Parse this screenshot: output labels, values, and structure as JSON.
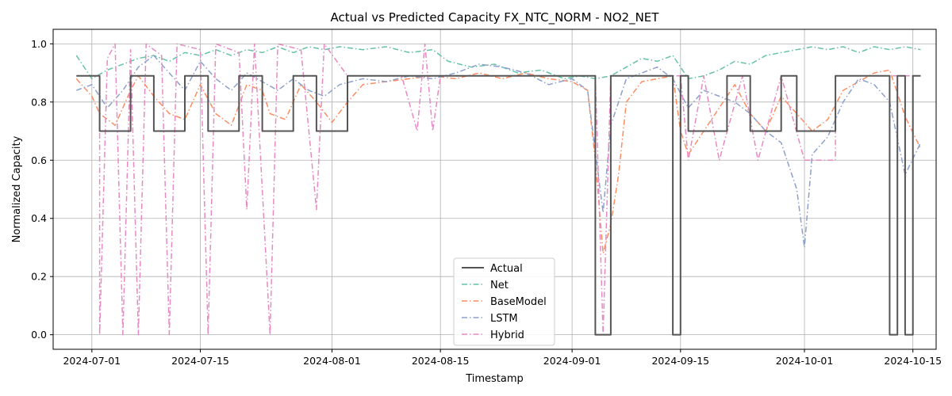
{
  "chart_data": {
    "type": "line",
    "title": "Actual vs Predicted Capacity FX_NTC_NORM - NO2_NET",
    "xlabel": "Timestamp",
    "ylabel": "Normalized Capacity",
    "x_range": [
      "2024-06-26",
      "2024-10-18"
    ],
    "ylim": [
      -0.05,
      1.05
    ],
    "x_ticks": [
      "2024-07-01",
      "2024-07-15",
      "2024-08-01",
      "2024-08-15",
      "2024-09-01",
      "2024-09-15",
      "2024-10-01",
      "2024-10-15"
    ],
    "y_ticks": [
      "0.0",
      "0.2",
      "0.4",
      "0.6",
      "0.8",
      "1.0"
    ],
    "grid": true,
    "legend_position": "lower center",
    "series": [
      {
        "name": "Actual",
        "color": "#555555",
        "style": "solid",
        "points": [
          [
            "2024-06-29",
            0.89
          ],
          [
            "2024-07-02",
            0.89
          ],
          [
            "2024-07-02",
            0.7
          ],
          [
            "2024-07-06",
            0.7
          ],
          [
            "2024-07-06",
            0.89
          ],
          [
            "2024-07-09",
            0.89
          ],
          [
            "2024-07-09",
            0.7
          ],
          [
            "2024-07-13",
            0.7
          ],
          [
            "2024-07-13",
            0.89
          ],
          [
            "2024-07-16",
            0.89
          ],
          [
            "2024-07-16",
            0.7
          ],
          [
            "2024-07-20",
            0.7
          ],
          [
            "2024-07-20",
            0.89
          ],
          [
            "2024-07-23",
            0.89
          ],
          [
            "2024-07-23",
            0.7
          ],
          [
            "2024-07-27",
            0.7
          ],
          [
            "2024-07-27",
            0.89
          ],
          [
            "2024-07-30",
            0.89
          ],
          [
            "2024-07-30",
            0.7
          ],
          [
            "2024-08-03",
            0.7
          ],
          [
            "2024-08-03",
            0.89
          ],
          [
            "2024-09-04",
            0.89
          ],
          [
            "2024-09-04",
            0.0
          ],
          [
            "2024-09-06",
            0.0
          ],
          [
            "2024-09-06",
            0.89
          ],
          [
            "2024-09-14",
            0.89
          ],
          [
            "2024-09-14",
            0.0
          ],
          [
            "2024-09-15",
            0.0
          ],
          [
            "2024-09-15",
            0.89
          ],
          [
            "2024-09-16",
            0.89
          ],
          [
            "2024-09-16",
            0.7
          ],
          [
            "2024-09-21",
            0.7
          ],
          [
            "2024-09-21",
            0.89
          ],
          [
            "2024-09-24",
            0.89
          ],
          [
            "2024-09-24",
            0.7
          ],
          [
            "2024-09-28",
            0.7
          ],
          [
            "2024-09-28",
            0.89
          ],
          [
            "2024-09-30",
            0.89
          ],
          [
            "2024-09-30",
            0.7
          ],
          [
            "2024-10-05",
            0.7
          ],
          [
            "2024-10-05",
            0.89
          ],
          [
            "2024-10-12",
            0.89
          ],
          [
            "2024-10-12",
            0.0
          ],
          [
            "2024-10-13",
            0.0
          ],
          [
            "2024-10-13",
            0.89
          ],
          [
            "2024-10-14",
            0.89
          ],
          [
            "2024-10-14",
            0.0
          ],
          [
            "2024-10-15",
            0.0
          ],
          [
            "2024-10-15",
            0.89
          ],
          [
            "2024-10-16",
            0.89
          ]
        ]
      },
      {
        "name": "Net",
        "color": "#66c2a5",
        "style": "dashdot",
        "points": [
          [
            "2024-06-29",
            0.96
          ],
          [
            "2024-07-01",
            0.88
          ],
          [
            "2024-07-03",
            0.91
          ],
          [
            "2024-07-05",
            0.93
          ],
          [
            "2024-07-07",
            0.95
          ],
          [
            "2024-07-09",
            0.96
          ],
          [
            "2024-07-11",
            0.94
          ],
          [
            "2024-07-13",
            0.97
          ],
          [
            "2024-07-15",
            0.96
          ],
          [
            "2024-07-17",
            0.98
          ],
          [
            "2024-07-19",
            0.96
          ],
          [
            "2024-07-21",
            0.98
          ],
          [
            "2024-07-23",
            0.97
          ],
          [
            "2024-07-25",
            0.99
          ],
          [
            "2024-07-27",
            0.97
          ],
          [
            "2024-07-29",
            0.99
          ],
          [
            "2024-07-31",
            0.98
          ],
          [
            "2024-08-02",
            0.99
          ],
          [
            "2024-08-05",
            0.98
          ],
          [
            "2024-08-08",
            0.99
          ],
          [
            "2024-08-11",
            0.97
          ],
          [
            "2024-08-14",
            0.98
          ],
          [
            "2024-08-16",
            0.94
          ],
          [
            "2024-08-19",
            0.92
          ],
          [
            "2024-08-22",
            0.93
          ],
          [
            "2024-08-25",
            0.9
          ],
          [
            "2024-08-28",
            0.91
          ],
          [
            "2024-08-31",
            0.88
          ],
          [
            "2024-09-02",
            0.89
          ],
          [
            "2024-09-04",
            0.88
          ],
          [
            "2024-09-06",
            0.89
          ],
          [
            "2024-09-08",
            0.92
          ],
          [
            "2024-09-10",
            0.95
          ],
          [
            "2024-09-12",
            0.94
          ],
          [
            "2024-09-14",
            0.96
          ],
          [
            "2024-09-16",
            0.88
          ],
          [
            "2024-09-18",
            0.89
          ],
          [
            "2024-09-20",
            0.91
          ],
          [
            "2024-09-22",
            0.94
          ],
          [
            "2024-09-24",
            0.93
          ],
          [
            "2024-09-26",
            0.96
          ],
          [
            "2024-09-28",
            0.97
          ],
          [
            "2024-09-30",
            0.98
          ],
          [
            "2024-10-02",
            0.99
          ],
          [
            "2024-10-04",
            0.98
          ],
          [
            "2024-10-06",
            0.99
          ],
          [
            "2024-10-08",
            0.97
          ],
          [
            "2024-10-10",
            0.99
          ],
          [
            "2024-10-12",
            0.98
          ],
          [
            "2024-10-14",
            0.99
          ],
          [
            "2024-10-16",
            0.98
          ]
        ]
      },
      {
        "name": "BaseModel",
        "color": "#fc8d62",
        "style": "dashdot",
        "points": [
          [
            "2024-06-29",
            0.88
          ],
          [
            "2024-07-01",
            0.82
          ],
          [
            "2024-07-02",
            0.76
          ],
          [
            "2024-07-04",
            0.72
          ],
          [
            "2024-07-06",
            0.84
          ],
          [
            "2024-07-07",
            0.89
          ],
          [
            "2024-07-09",
            0.82
          ],
          [
            "2024-07-11",
            0.76
          ],
          [
            "2024-07-13",
            0.74
          ],
          [
            "2024-07-15",
            0.86
          ],
          [
            "2024-07-17",
            0.76
          ],
          [
            "2024-07-19",
            0.72
          ],
          [
            "2024-07-21",
            0.86
          ],
          [
            "2024-07-23",
            0.84
          ],
          [
            "2024-07-24",
            0.76
          ],
          [
            "2024-07-26",
            0.74
          ],
          [
            "2024-07-28",
            0.86
          ],
          [
            "2024-07-30",
            0.8
          ],
          [
            "2024-08-01",
            0.73
          ],
          [
            "2024-08-03",
            0.8
          ],
          [
            "2024-08-05",
            0.86
          ],
          [
            "2024-08-08",
            0.87
          ],
          [
            "2024-08-11",
            0.88
          ],
          [
            "2024-08-14",
            0.89
          ],
          [
            "2024-08-17",
            0.88
          ],
          [
            "2024-08-20",
            0.9
          ],
          [
            "2024-08-23",
            0.88
          ],
          [
            "2024-08-26",
            0.9
          ],
          [
            "2024-08-29",
            0.88
          ],
          [
            "2024-09-01",
            0.87
          ],
          [
            "2024-09-03",
            0.84
          ],
          [
            "2024-09-04",
            0.6
          ],
          [
            "2024-09-05",
            0.28
          ],
          [
            "2024-09-06",
            0.38
          ],
          [
            "2024-09-07",
            0.55
          ],
          [
            "2024-09-08",
            0.8
          ],
          [
            "2024-09-10",
            0.87
          ],
          [
            "2024-09-12",
            0.88
          ],
          [
            "2024-09-14",
            0.89
          ],
          [
            "2024-09-15",
            0.7
          ],
          [
            "2024-09-16",
            0.62
          ],
          [
            "2024-09-18",
            0.7
          ],
          [
            "2024-09-20",
            0.78
          ],
          [
            "2024-09-22",
            0.86
          ],
          [
            "2024-09-24",
            0.76
          ],
          [
            "2024-09-26",
            0.7
          ],
          [
            "2024-09-28",
            0.82
          ],
          [
            "2024-09-30",
            0.76
          ],
          [
            "2024-10-02",
            0.7
          ],
          [
            "2024-10-04",
            0.74
          ],
          [
            "2024-10-06",
            0.84
          ],
          [
            "2024-10-08",
            0.87
          ],
          [
            "2024-10-10",
            0.9
          ],
          [
            "2024-10-12",
            0.91
          ],
          [
            "2024-10-14",
            0.75
          ],
          [
            "2024-10-16",
            0.64
          ]
        ]
      },
      {
        "name": "LSTM",
        "color": "#8da0cb",
        "style": "dashdot",
        "points": [
          [
            "2024-06-29",
            0.84
          ],
          [
            "2024-07-01",
            0.86
          ],
          [
            "2024-07-03",
            0.78
          ],
          [
            "2024-07-05",
            0.84
          ],
          [
            "2024-07-07",
            0.92
          ],
          [
            "2024-07-09",
            0.96
          ],
          [
            "2024-07-11",
            0.9
          ],
          [
            "2024-07-13",
            0.84
          ],
          [
            "2024-07-15",
            0.94
          ],
          [
            "2024-07-17",
            0.88
          ],
          [
            "2024-07-19",
            0.84
          ],
          [
            "2024-07-21",
            0.9
          ],
          [
            "2024-07-23",
            0.87
          ],
          [
            "2024-07-25",
            0.84
          ],
          [
            "2024-07-27",
            0.88
          ],
          [
            "2024-07-29",
            0.84
          ],
          [
            "2024-07-31",
            0.82
          ],
          [
            "2024-08-02",
            0.86
          ],
          [
            "2024-08-05",
            0.88
          ],
          [
            "2024-08-08",
            0.87
          ],
          [
            "2024-08-11",
            0.89
          ],
          [
            "2024-08-14",
            0.88
          ],
          [
            "2024-08-17",
            0.9
          ],
          [
            "2024-08-20",
            0.93
          ],
          [
            "2024-08-23",
            0.92
          ],
          [
            "2024-08-26",
            0.9
          ],
          [
            "2024-08-29",
            0.86
          ],
          [
            "2024-09-01",
            0.88
          ],
          [
            "2024-09-03",
            0.84
          ],
          [
            "2024-09-05",
            0.42
          ],
          [
            "2024-09-06",
            0.72
          ],
          [
            "2024-09-08",
            0.88
          ],
          [
            "2024-09-10",
            0.9
          ],
          [
            "2024-09-12",
            0.92
          ],
          [
            "2024-09-14",
            0.88
          ],
          [
            "2024-09-16",
            0.78
          ],
          [
            "2024-09-18",
            0.84
          ],
          [
            "2024-09-20",
            0.82
          ],
          [
            "2024-09-22",
            0.8
          ],
          [
            "2024-09-24",
            0.76
          ],
          [
            "2024-09-26",
            0.7
          ],
          [
            "2024-09-28",
            0.66
          ],
          [
            "2024-09-30",
            0.5
          ],
          [
            "2024-10-01",
            0.3
          ],
          [
            "2024-10-02",
            0.62
          ],
          [
            "2024-10-04",
            0.68
          ],
          [
            "2024-10-06",
            0.8
          ],
          [
            "2024-10-08",
            0.88
          ],
          [
            "2024-10-10",
            0.86
          ],
          [
            "2024-10-12",
            0.8
          ],
          [
            "2024-10-14",
            0.55
          ],
          [
            "2024-10-16",
            0.66
          ]
        ]
      },
      {
        "name": "Hybrid",
        "color": "#e78ac3",
        "style": "dashdot",
        "points": [
          [
            "2024-06-29",
            0.89
          ],
          [
            "2024-07-02",
            0.89
          ],
          [
            "2024-07-02",
            0.0
          ],
          [
            "2024-07-03",
            0.95
          ],
          [
            "2024-07-04",
            1.0
          ],
          [
            "2024-07-05",
            0.0
          ],
          [
            "2024-07-06",
            0.98
          ],
          [
            "2024-07-07",
            0.0
          ],
          [
            "2024-07-08",
            1.0
          ],
          [
            "2024-07-10",
            0.96
          ],
          [
            "2024-07-11",
            0.0
          ],
          [
            "2024-07-12",
            1.0
          ],
          [
            "2024-07-15",
            0.98
          ],
          [
            "2024-07-16",
            0.0
          ],
          [
            "2024-07-17",
            1.0
          ],
          [
            "2024-07-20",
            0.97
          ],
          [
            "2024-07-21",
            0.43
          ],
          [
            "2024-07-22",
            1.0
          ],
          [
            "2024-07-24",
            0.0
          ],
          [
            "2024-07-25",
            1.0
          ],
          [
            "2024-07-28",
            0.98
          ],
          [
            "2024-07-30",
            0.43
          ],
          [
            "2024-07-31",
            1.0
          ],
          [
            "2024-08-03",
            0.89
          ],
          [
            "2024-08-10",
            0.89
          ],
          [
            "2024-08-12",
            0.7
          ],
          [
            "2024-08-13",
            1.0
          ],
          [
            "2024-08-14",
            0.7
          ],
          [
            "2024-08-15",
            0.89
          ],
          [
            "2024-09-04",
            0.89
          ],
          [
            "2024-09-05",
            0.0
          ],
          [
            "2024-09-06",
            0.89
          ],
          [
            "2024-09-15",
            0.89
          ],
          [
            "2024-09-16",
            0.6
          ],
          [
            "2024-09-18",
            0.89
          ],
          [
            "2024-09-20",
            0.6
          ],
          [
            "2024-09-23",
            0.89
          ],
          [
            "2024-09-25",
            0.6
          ],
          [
            "2024-09-28",
            0.89
          ],
          [
            "2024-10-01",
            0.6
          ],
          [
            "2024-10-05",
            0.6
          ],
          [
            "2024-10-05",
            0.89
          ],
          [
            "2024-10-16",
            0.89
          ]
        ]
      }
    ]
  }
}
